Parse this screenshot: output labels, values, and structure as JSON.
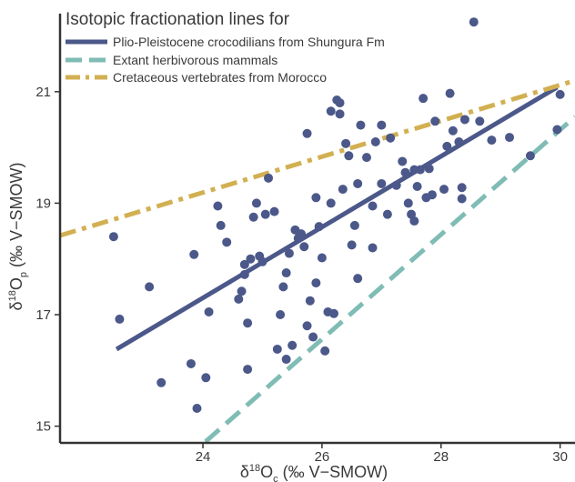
{
  "chart_data": {
    "type": "scatter",
    "xlabel": "δ18Oc (‰ V−SMOW)",
    "xlabel_parts": {
      "delta": "δ",
      "sup": "18",
      "main": "O",
      "sub": "c",
      "unit": " (‰ V−SMOW)"
    },
    "ylabel": "δ18Op (‰ V−SMOW)",
    "ylabel_parts": {
      "delta": "δ",
      "sup": "18",
      "main": "O",
      "sub": "p",
      "unit": " (‰ V−SMOW)"
    },
    "xlim": [
      21.6,
      30.25
    ],
    "ylim": [
      14.7,
      22.4
    ],
    "xticks": [
      "24",
      "26",
      "28",
      "30"
    ],
    "xtick_values": [
      24,
      26,
      28,
      30
    ],
    "yticks": [
      "15",
      "17",
      "19",
      "21"
    ],
    "ytick_values": [
      15,
      17,
      19,
      21
    ],
    "grid": false,
    "legend": {
      "title": "Isotopic fractionation lines for",
      "placement": "top-left",
      "entries": [
        "Plio-Pleistocene crocodilians from Shungura Fm",
        "Extant herbivorous mammals",
        "Cretaceous vertebrates from Morocco"
      ]
    },
    "lines": [
      {
        "name": "Plio-Pleistocene crocodilians from Shungura Fm",
        "color": "#4b5889",
        "style": "solid",
        "x": [
          22.55,
          29.95
        ],
        "y": [
          16.38,
          21.08
        ]
      },
      {
        "name": "Extant herbivorous mammals",
        "color": "#7fbcb5",
        "style": "dashed",
        "x": [
          23.7,
          30.25
        ],
        "y": [
          14.4,
          20.55
        ]
      },
      {
        "name": "Cretaceous vertebrates from Morocco",
        "color": "#d2b052",
        "style": "dashdot",
        "x": [
          21.6,
          30.25
        ],
        "y": [
          18.42,
          21.2
        ]
      }
    ],
    "points_color": "#4b5889",
    "points": [
      [
        22.5,
        18.4
      ],
      [
        22.6,
        16.92
      ],
      [
        23.1,
        17.5
      ],
      [
        23.3,
        15.78
      ],
      [
        23.8,
        16.12
      ],
      [
        23.85,
        18.08
      ],
      [
        23.9,
        15.32
      ],
      [
        24.05,
        15.87
      ],
      [
        24.1,
        17.05
      ],
      [
        24.25,
        18.95
      ],
      [
        24.3,
        18.6
      ],
      [
        24.4,
        18.3
      ],
      [
        24.6,
        17.28
      ],
      [
        24.65,
        17.42
      ],
      [
        24.7,
        17.72
      ],
      [
        24.7,
        17.9
      ],
      [
        24.75,
        16.02
      ],
      [
        24.75,
        16.85
      ],
      [
        24.8,
        18.0
      ],
      [
        24.85,
        18.75
      ],
      [
        24.9,
        19.0
      ],
      [
        24.95,
        18.05
      ],
      [
        25.0,
        17.95
      ],
      [
        25.05,
        18.8
      ],
      [
        25.1,
        19.45
      ],
      [
        25.2,
        18.85
      ],
      [
        25.25,
        16.38
      ],
      [
        25.3,
        17.0
      ],
      [
        25.35,
        17.5
      ],
      [
        25.4,
        17.75
      ],
      [
        25.4,
        16.2
      ],
      [
        25.45,
        18.1
      ],
      [
        25.5,
        16.45
      ],
      [
        25.55,
        18.52
      ],
      [
        25.6,
        18.37
      ],
      [
        25.65,
        18.45
      ],
      [
        25.7,
        18.22
      ],
      [
        25.75,
        16.8
      ],
      [
        25.75,
        20.25
      ],
      [
        25.8,
        17.25
      ],
      [
        25.85,
        16.6
      ],
      [
        25.9,
        19.1
      ],
      [
        25.9,
        17.57
      ],
      [
        25.95,
        18.58
      ],
      [
        26.0,
        18.02
      ],
      [
        26.05,
        16.35
      ],
      [
        26.1,
        17.05
      ],
      [
        26.15,
        19.0
      ],
      [
        26.15,
        20.65
      ],
      [
        26.2,
        17.02
      ],
      [
        26.25,
        20.85
      ],
      [
        26.3,
        20.8
      ],
      [
        26.3,
        20.6
      ],
      [
        26.35,
        19.25
      ],
      [
        26.4,
        20.07
      ],
      [
        26.45,
        19.85
      ],
      [
        26.5,
        18.25
      ],
      [
        26.55,
        18.6
      ],
      [
        26.6,
        17.65
      ],
      [
        26.6,
        19.35
      ],
      [
        26.65,
        20.4
      ],
      [
        26.75,
        19.82
      ],
      [
        26.85,
        18.2
      ],
      [
        26.85,
        18.95
      ],
      [
        26.9,
        20.1
      ],
      [
        27.0,
        20.4
      ],
      [
        27.0,
        19.35
      ],
      [
        27.1,
        18.8
      ],
      [
        27.15,
        20.17
      ],
      [
        27.25,
        19.32
      ],
      [
        27.35,
        19.75
      ],
      [
        27.4,
        19.55
      ],
      [
        27.45,
        19.0
      ],
      [
        27.5,
        18.8
      ],
      [
        27.55,
        19.6
      ],
      [
        27.55,
        18.68
      ],
      [
        27.6,
        19.3
      ],
      [
        27.65,
        19.6
      ],
      [
        27.7,
        20.88
      ],
      [
        27.75,
        19.1
      ],
      [
        27.8,
        19.62
      ],
      [
        27.85,
        19.15
      ],
      [
        27.9,
        20.47
      ],
      [
        28.05,
        19.25
      ],
      [
        28.1,
        20.02
      ],
      [
        28.15,
        20.97
      ],
      [
        28.2,
        20.3
      ],
      [
        28.3,
        20.1
      ],
      [
        28.35,
        19.08
      ],
      [
        28.35,
        19.28
      ],
      [
        28.4,
        20.5
      ],
      [
        28.55,
        22.25
      ],
      [
        28.65,
        20.47
      ],
      [
        28.85,
        20.13
      ],
      [
        29.15,
        20.18
      ],
      [
        29.5,
        19.85
      ],
      [
        29.95,
        20.32
      ],
      [
        30.0,
        20.95
      ]
    ]
  }
}
